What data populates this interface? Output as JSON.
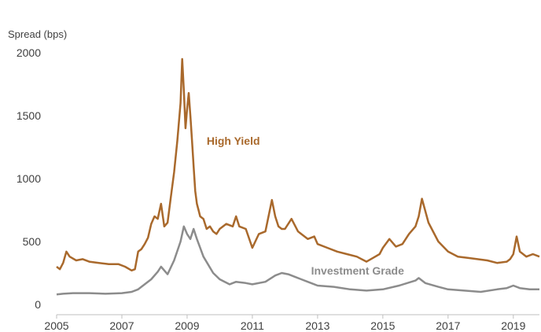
{
  "chart_data": {
    "type": "line",
    "title": "",
    "ylabel": "Spread (bps)",
    "xlabel": "",
    "xlim": [
      2005.0,
      2019.8
    ],
    "ylim": [
      0,
      2050
    ],
    "y_ticks": [
      0,
      500,
      1000,
      1500,
      2000
    ],
    "x_ticks": [
      2005,
      2007,
      2009,
      2011,
      2013,
      2015,
      2017,
      2019
    ],
    "grid": false,
    "legend": "none",
    "series": [
      {
        "name": "High Yield",
        "color": "#a9692c",
        "x": [
          2005.0,
          2005.1,
          2005.2,
          2005.3,
          2005.4,
          2005.6,
          2005.8,
          2006.0,
          2006.3,
          2006.6,
          2006.9,
          2007.1,
          2007.3,
          2007.4,
          2007.5,
          2007.6,
          2007.7,
          2007.8,
          2007.9,
          2008.0,
          2008.1,
          2008.2,
          2008.3,
          2008.4,
          2008.5,
          2008.6,
          2008.7,
          2008.8,
          2008.85,
          2008.9,
          2008.95,
          2009.0,
          2009.05,
          2009.1,
          2009.15,
          2009.2,
          2009.25,
          2009.3,
          2009.35,
          2009.4,
          2009.5,
          2009.6,
          2009.7,
          2009.8,
          2009.9,
          2010.0,
          2010.2,
          2010.4,
          2010.5,
          2010.6,
          2010.8,
          2011.0,
          2011.2,
          2011.4,
          2011.6,
          2011.7,
          2011.8,
          2011.9,
          2012.0,
          2012.2,
          2012.4,
          2012.5,
          2012.7,
          2012.9,
          2013.0,
          2013.3,
          2013.6,
          2013.9,
          2014.2,
          2014.5,
          2014.7,
          2014.9,
          2015.0,
          2015.2,
          2015.4,
          2015.6,
          2015.8,
          2016.0,
          2016.1,
          2016.2,
          2016.4,
          2016.7,
          2017.0,
          2017.3,
          2017.6,
          2017.9,
          2018.2,
          2018.5,
          2018.8,
          2018.9,
          2019.0,
          2019.1,
          2019.2,
          2019.4,
          2019.6,
          2019.8
        ],
        "values": [
          300,
          280,
          330,
          420,
          380,
          350,
          360,
          340,
          330,
          320,
          320,
          300,
          270,
          280,
          420,
          440,
          480,
          530,
          640,
          700,
          680,
          800,
          620,
          650,
          850,
          1050,
          1300,
          1600,
          1950,
          1700,
          1400,
          1550,
          1680,
          1500,
          1300,
          1100,
          900,
          800,
          750,
          700,
          680,
          600,
          620,
          580,
          560,
          600,
          640,
          620,
          700,
          620,
          600,
          450,
          560,
          580,
          830,
          700,
          620,
          600,
          600,
          680,
          580,
          560,
          520,
          540,
          480,
          450,
          420,
          400,
          380,
          340,
          370,
          400,
          450,
          520,
          460,
          480,
          560,
          620,
          700,
          840,
          650,
          500,
          420,
          380,
          370,
          360,
          350,
          330,
          340,
          360,
          400,
          540,
          420,
          380,
          400,
          380
        ]
      },
      {
        "name": "Investment Grade",
        "color": "#8c8c8c",
        "x": [
          2005.0,
          2005.2,
          2005.5,
          2006.0,
          2006.5,
          2007.0,
          2007.3,
          2007.5,
          2007.7,
          2007.9,
          2008.1,
          2008.2,
          2008.4,
          2008.6,
          2008.8,
          2008.9,
          2009.0,
          2009.1,
          2009.2,
          2009.3,
          2009.5,
          2009.8,
          2010.0,
          2010.3,
          2010.5,
          2010.8,
          2011.0,
          2011.4,
          2011.7,
          2011.9,
          2012.1,
          2012.3,
          2012.5,
          2012.8,
          2013.0,
          2013.5,
          2014.0,
          2014.5,
          2015.0,
          2015.5,
          2016.0,
          2016.1,
          2016.3,
          2016.7,
          2017.0,
          2017.5,
          2018.0,
          2018.5,
          2018.8,
          2019.0,
          2019.2,
          2019.5,
          2019.8
        ],
        "values": [
          80,
          85,
          90,
          90,
          85,
          90,
          100,
          120,
          160,
          200,
          260,
          300,
          240,
          350,
          500,
          620,
          560,
          520,
          600,
          520,
          380,
          250,
          200,
          160,
          180,
          170,
          160,
          180,
          230,
          250,
          240,
          220,
          200,
          170,
          150,
          140,
          120,
          110,
          120,
          150,
          190,
          210,
          170,
          140,
          120,
          110,
          100,
          120,
          130,
          150,
          130,
          120,
          120
        ]
      }
    ],
    "annotations": [
      "High Yield",
      "Investment Grade"
    ]
  }
}
